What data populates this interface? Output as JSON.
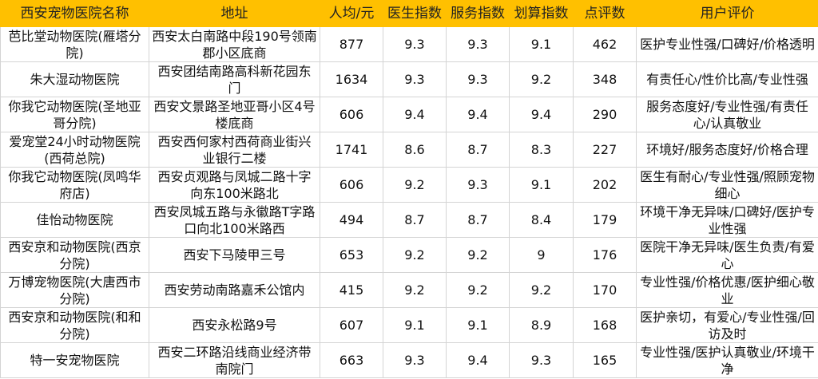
{
  "colors": {
    "header_bg": "#FFC000",
    "grid": "#d4d4d4"
  },
  "columns": [
    "西安宠物医院名称",
    "地址",
    "人均/元",
    "医生指数",
    "服务指数",
    "划算指数",
    "点评数",
    "用户评价"
  ],
  "rows": [
    [
      "芭比堂动物医院(雁塔分院)",
      "西安太白南路中段190号领南郡小区底商",
      "877",
      "9.3",
      "9.3",
      "9.1",
      "462",
      "医护专业性强/口碑好/价格透明"
    ],
    [
      "朱大湿动物医院",
      "西安团结南路高科新花园东门",
      "1634",
      "9.3",
      "9.3",
      "9.2",
      "348",
      "有责任心/性价比高/专业性强"
    ],
    [
      "你我它动物医院(圣地亚哥分院)",
      "西安文景路圣地亚哥小区4号楼底商",
      "606",
      "9.4",
      "9.4",
      "9.4",
      "290",
      "服务态度好/专业性强/有责任心/认真敬业"
    ],
    [
      "爱宠堂24小时动物医院(西荷总院)",
      "西安西何家村西荷商业街兴业银行二楼",
      "1741",
      "8.6",
      "8.7",
      "8.3",
      "227",
      "环境好/服务态度好/价格合理"
    ],
    [
      "你我它动物医院(凤鸣华府店)",
      "西安贞观路与凤城二路十字向东100米路北",
      "606",
      "9.2",
      "9.3",
      "9.1",
      "202",
      "医生有耐心/专业性强/照顾宠物细心"
    ],
    [
      "佳怡动物医院",
      "西安凤城五路与永徽路T字路口向北100米路西",
      "494",
      "8.7",
      "8.7",
      "8.4",
      "179",
      "环境干净无异味/口碑好/医护专业性强"
    ],
    [
      "西安京和动物医院(西京分院)",
      "西安下马陵甲三号",
      "653",
      "9.2",
      "9.2",
      "9",
      "176",
      "医院干净无异味/医生负责/有爱心"
    ],
    [
      "万博宠物医院(大唐西市分院)",
      "西安劳动南路嘉禾公馆内",
      "415",
      "9.2",
      "9.2",
      "9.2",
      "170",
      "专业性强/价格优惠/医护细心敬业"
    ],
    [
      "西安京和动物医院(和和分院)",
      "西安永松路9号",
      "607",
      "9.1",
      "9.1",
      "8.9",
      "168",
      "医护亲切，有爱心/专业性强/回访及时"
    ],
    [
      "特一安宠物医院",
      "西安二环路沿线商业经济带南院门",
      "663",
      "9.3",
      "9.4",
      "9.3",
      "165",
      "专业性强/医护认真敬业/环境干净"
    ]
  ]
}
